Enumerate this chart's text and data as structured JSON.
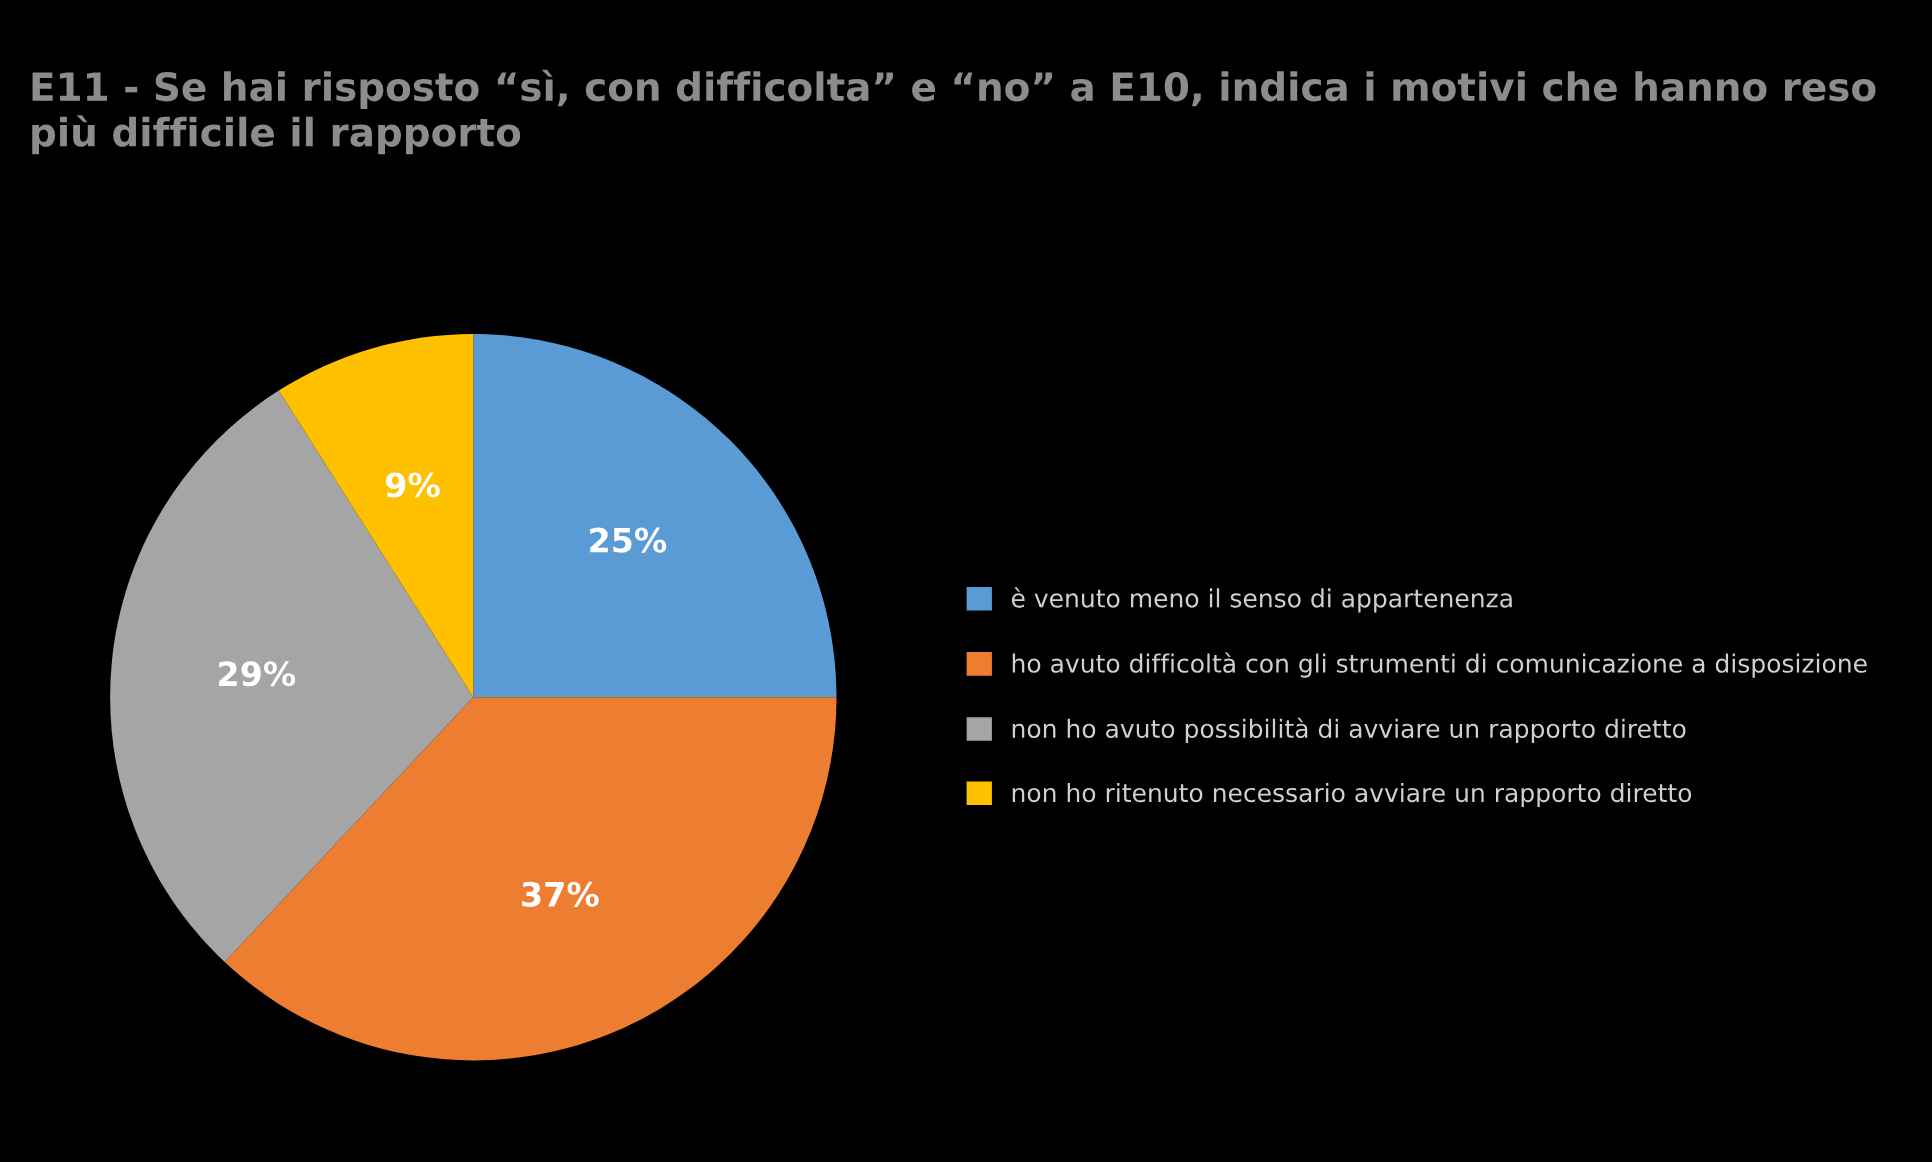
{
  "chart_data": {
    "type": "pie",
    "title": "E11 - Se hai risposto “sì, con difficolta” e “no” a E10, indica i motivi che hanno reso più difficile il rapporto",
    "categories": [
      "è venuto meno il senso di appartenenza",
      "ho avuto difficoltà con gli strumenti di comunicazione a disposizione",
      "non ho avuto possibilità di avviare un rapporto diretto",
      "non ho ritenuto necessario avviare un rapporto diretto"
    ],
    "values": [
      25,
      37,
      29,
      9
    ],
    "value_labels": [
      "25%",
      "37%",
      "29%",
      "9%"
    ],
    "colors": [
      "#5b9bd5",
      "#ed7d31",
      "#a5a5a5",
      "#ffc000"
    ],
    "legend": "right"
  }
}
